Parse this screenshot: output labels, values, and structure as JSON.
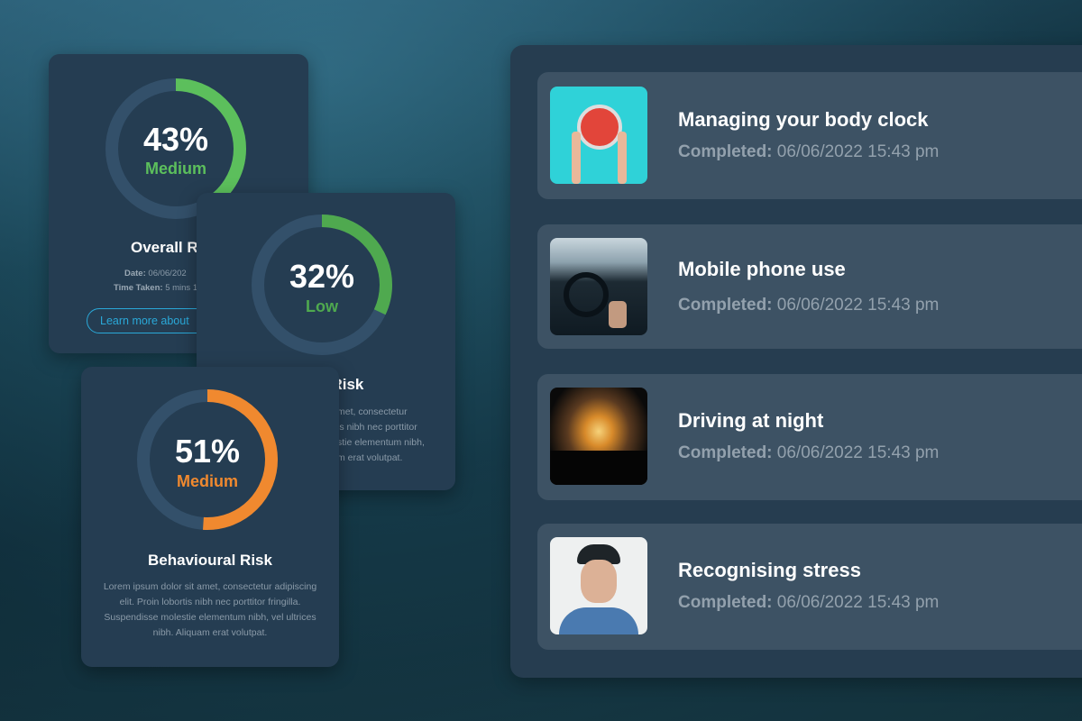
{
  "colors": {
    "medium_green": "#5cbf5c",
    "low_green": "#4fa94f",
    "medium_orange": "#f0892f",
    "track": "#33506a",
    "button": "#2aa8d8"
  },
  "risk_cards": [
    {
      "percent": 43,
      "percent_label": "43%",
      "level": "Medium",
      "level_color": "#5cbf5c",
      "title": "Overall R",
      "date_label": "Date:",
      "date_value": "06/06/202",
      "time_label": "Time Taken:",
      "time_value": "5 mins 1",
      "button": "Learn more about"
    },
    {
      "percent": 32,
      "percent_label": "32%",
      "level": "Low",
      "level_color": "#4fa94f",
      "title": "l Risk",
      "body_lines": [
        "met, consectetur",
        "is nibh nec porttitor",
        "stie elementum nibh,",
        "m erat volutpat."
      ]
    },
    {
      "percent": 51,
      "percent_label": "51%",
      "level": "Medium",
      "level_color": "#f0892f",
      "title": "Behavioural Risk",
      "body": "Lorem ipsum dolor sit amet, consectetur adipiscing elit. Proin lobortis nibh nec porttitor fringilla. Suspendisse molestie elementum nibh, vel ultrices nibh. Aliquam erat volutpat."
    }
  ],
  "modules": [
    {
      "title": "Managing your body clock",
      "completed_label": "Completed:",
      "completed_value": "06/06/2022 15:43 pm",
      "image": "alarm-clock"
    },
    {
      "title": "Mobile phone use",
      "completed_label": "Completed:",
      "completed_value": "06/06/2022 15:43 pm",
      "image": "phone-driving"
    },
    {
      "title": "Driving at night",
      "completed_label": "Completed:",
      "completed_value": "06/06/2022 15:43 pm",
      "image": "night-driving"
    },
    {
      "title": "Recognising stress",
      "completed_label": "Completed:",
      "completed_value": "06/06/2022 15:43 pm",
      "image": "stressed-man"
    }
  ]
}
